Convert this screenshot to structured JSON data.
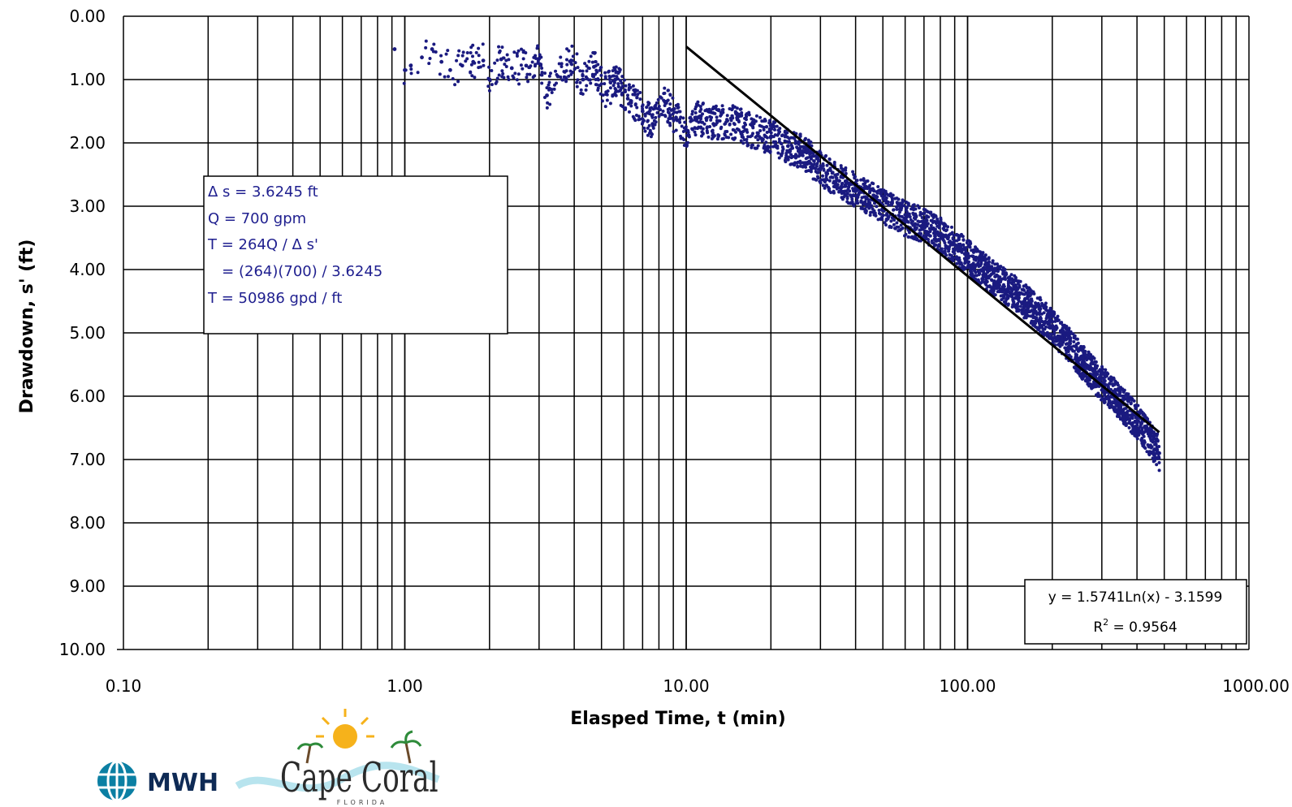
{
  "chart_data": {
    "type": "scatter",
    "xscale": "log",
    "xlim": [
      0.1,
      1000
    ],
    "ylim": [
      0,
      10
    ],
    "yaxis_inverted": true,
    "grid": true,
    "xlabel": "Elasped Time, t (min)",
    "ylabel": "Drawdown, s' (ft)",
    "xticks": [
      "0.10",
      "1.00",
      "10.00",
      "100.00",
      "1000.00"
    ],
    "yticks": [
      "0.00",
      "1.00",
      "2.00",
      "3.00",
      "4.00",
      "5.00",
      "6.00",
      "7.00",
      "8.00",
      "9.00",
      "10.00"
    ],
    "marker_color": "#1a1a80",
    "series": [
      {
        "kind": "measured points",
        "points": [
          [
            0.92,
            0.52
          ],
          [
            1.0,
            0.85
          ],
          [
            1.05,
            0.78
          ],
          [
            1.15,
            0.65
          ],
          [
            1.25,
            0.52
          ],
          [
            1.35,
            0.72
          ],
          [
            1.45,
            0.85
          ],
          [
            1.6,
            0.78
          ],
          [
            1.75,
            0.72
          ],
          [
            1.9,
            0.7
          ],
          [
            2.0,
            1.0
          ],
          [
            2.2,
            0.68
          ],
          [
            2.4,
            0.82
          ],
          [
            2.7,
            0.78
          ],
          [
            3.0,
            0.67
          ],
          [
            3.2,
            1.25
          ],
          [
            3.5,
            0.95
          ],
          [
            3.9,
            0.7
          ],
          [
            4.3,
            1.0
          ],
          [
            4.7,
            0.8
          ],
          [
            5.2,
            1.2
          ],
          [
            5.6,
            1.0
          ],
          [
            6.2,
            1.3
          ],
          [
            7.0,
            1.5
          ],
          [
            7.6,
            1.7
          ],
          [
            8.4,
            1.35
          ],
          [
            9.2,
            1.6
          ],
          [
            10.0,
            1.8
          ],
          [
            11.0,
            1.6
          ],
          [
            12.5,
            1.7
          ],
          [
            14.0,
            1.65
          ],
          [
            16.0,
            1.75
          ],
          [
            18.0,
            1.85
          ],
          [
            20.0,
            1.9
          ],
          [
            23.0,
            2.05
          ],
          [
            26.0,
            2.15
          ],
          [
            30.0,
            2.4
          ],
          [
            35.0,
            2.6
          ],
          [
            40.0,
            2.75
          ],
          [
            50.0,
            3.0
          ],
          [
            60.0,
            3.2
          ],
          [
            70.0,
            3.3
          ],
          [
            80.0,
            3.45
          ],
          [
            100.0,
            3.8
          ],
          [
            120.0,
            4.1
          ],
          [
            150.0,
            4.4
          ],
          [
            180.0,
            4.7
          ],
          [
            220.0,
            5.1
          ],
          [
            260.0,
            5.5
          ],
          [
            300.0,
            5.8
          ],
          [
            350.0,
            6.1
          ],
          [
            400.0,
            6.4
          ],
          [
            450.0,
            6.7
          ],
          [
            480.0,
            6.9
          ]
        ]
      },
      {
        "kind": "fit line",
        "points": [
          [
            10.0,
            0.48
          ],
          [
            480.0,
            6.57
          ]
        ]
      }
    ],
    "parameters_box": [
      "Δ s = 3.6245 ft",
      "Q = 700 gpm",
      "T = 264Q / Δ s'",
      "   = (264)(700) / 3.6245",
      "T = 50986 gpd / ft"
    ],
    "trendline": {
      "equation": "y = 1.5741Ln(x) - 3.1599",
      "r2_prefix": "R",
      "r2_sup": "2",
      "r2_value": " = 0.9564"
    }
  },
  "logos": {
    "mwh": "MWH",
    "cape_coral": "Cape Coral",
    "florida": "FLORIDA",
    "mwh_icon": "globe-icon"
  }
}
